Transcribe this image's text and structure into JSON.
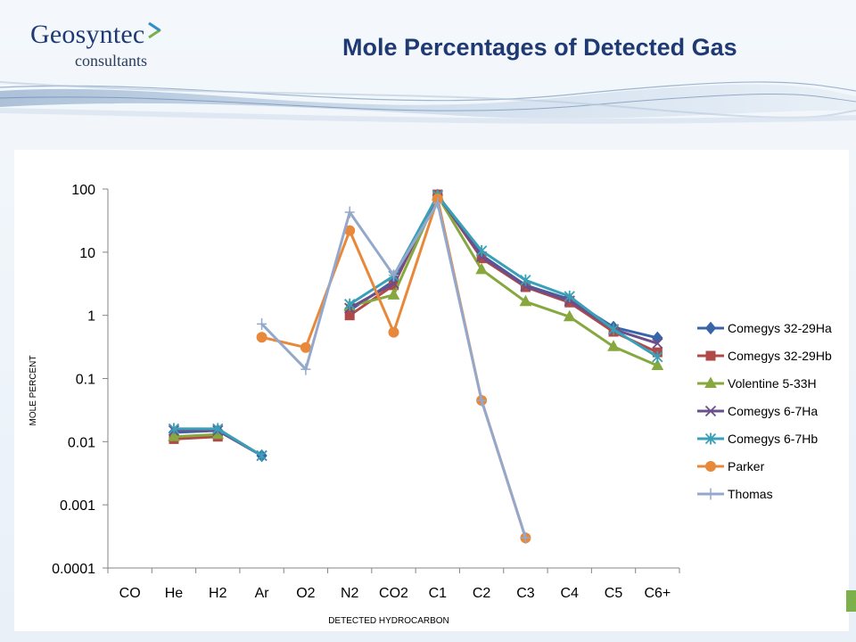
{
  "header": {
    "logo_name": "Geosyntec",
    "logo_sub": "consultants",
    "title": "Mole Percentages of Detected Gas"
  },
  "colors": {
    "title": "#1f3a73",
    "logo_mark_green": "#7bb04a",
    "logo_mark_blue": "#2f8fcf"
  },
  "chart_data": {
    "type": "line",
    "title": "",
    "xlabel": "DETECTED HYDROCARBON",
    "ylabel": "MOLE PERCENT",
    "yscale": "log",
    "ylim": [
      0.0001,
      100
    ],
    "y_ticks": [
      0.0001,
      0.001,
      0.01,
      0.1,
      1,
      10,
      100
    ],
    "y_tick_labels": [
      "0.0001",
      "0.001",
      "0.01",
      "0.1",
      "1",
      "10",
      "100"
    ],
    "categories": [
      "CO",
      "He",
      "H2",
      "Ar",
      "O2",
      "N2",
      "CO2",
      "C1",
      "C2",
      "C3",
      "C4",
      "C5",
      "C6+"
    ],
    "grid": false,
    "legend": "right",
    "series": [
      {
        "name": "Comegys 32-29Ha",
        "color": "#3a64a8",
        "marker": "diamond",
        "values": [
          null,
          0.014,
          0.015,
          0.006,
          null,
          1.2,
          3.5,
          80,
          9,
          3,
          1.8,
          0.65,
          0.44
        ]
      },
      {
        "name": "Comegys 32-29Hb",
        "color": "#b04a48",
        "marker": "square",
        "values": [
          null,
          0.011,
          0.012,
          null,
          null,
          1.0,
          3.0,
          82,
          8,
          2.8,
          1.6,
          0.55,
          0.26
        ]
      },
      {
        "name": "Volentine 5-33H",
        "color": "#86a83e",
        "marker": "triangle",
        "values": [
          null,
          0.012,
          0.013,
          null,
          null,
          1.4,
          2.1,
          78,
          5.3,
          1.65,
          0.95,
          0.32,
          0.16
        ]
      },
      {
        "name": "Comegys 6-7Ha",
        "color": "#6a4f8a",
        "marker": "x",
        "values": [
          null,
          0.015,
          0.015,
          0.006,
          null,
          1.3,
          3.2,
          80,
          8.5,
          2.9,
          1.7,
          0.6,
          0.36
        ]
      },
      {
        "name": "Comegys 6-7Hb",
        "color": "#3aa0b8",
        "marker": "asterisk",
        "values": [
          null,
          0.016,
          0.016,
          0.006,
          null,
          1.5,
          4.2,
          79,
          10.5,
          3.6,
          2.0,
          0.6,
          0.22
        ]
      },
      {
        "name": "Parker",
        "color": "#e8883a",
        "marker": "circle",
        "values": [
          null,
          null,
          null,
          0.45,
          0.31,
          22,
          0.54,
          70,
          0.045,
          0.0003,
          null,
          null,
          null
        ]
      },
      {
        "name": "Thomas",
        "color": "#94a8cc",
        "marker": "plus",
        "values": [
          null,
          null,
          null,
          0.73,
          0.14,
          43,
          4.3,
          60,
          0.045,
          0.0003,
          null,
          null,
          null
        ]
      }
    ]
  }
}
